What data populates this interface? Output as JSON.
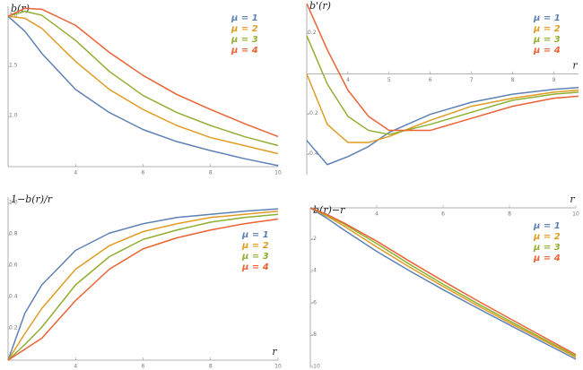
{
  "chart_data": [
    {
      "type": "line",
      "ylabel": "b(r)",
      "xlim": [
        2,
        10
      ],
      "ylim": [
        0.5,
        2.1
      ],
      "xticks": [
        4,
        6,
        8,
        10
      ],
      "yticks": [
        {
          "value": 2,
          "label": "2.0"
        },
        1.5,
        {
          "value": 1,
          "label": "1.0"
        }
      ],
      "legend": "upper right",
      "x": [
        2,
        2.5,
        3,
        4,
        5,
        6,
        7,
        8,
        9,
        10
      ],
      "series": [
        {
          "name": "μ = 1",
          "color": "#5e81b5",
          "values": [
            2.0,
            1.85,
            1.63,
            1.27,
            1.04,
            0.87,
            0.75,
            0.66,
            0.58,
            0.51
          ]
        },
        {
          "name": "μ = 2",
          "color": "#e19c24",
          "values": [
            2.0,
            1.98,
            1.88,
            1.55,
            1.27,
            1.07,
            0.91,
            0.79,
            0.71,
            0.63
          ]
        },
        {
          "name": "μ = 3",
          "color": "#8fb032",
          "values": [
            2.0,
            2.05,
            2.01,
            1.76,
            1.45,
            1.21,
            1.04,
            0.91,
            0.8,
            0.71
          ]
        },
        {
          "name": "μ = 4",
          "color": "#eb6235",
          "values": [
            2.0,
            2.08,
            2.07,
            1.91,
            1.64,
            1.41,
            1.22,
            1.07,
            0.93,
            0.8
          ]
        }
      ]
    },
    {
      "type": "line",
      "ylabel": "b'(r)",
      "xlabel": "r",
      "xlim": [
        3,
        9.6
      ],
      "ylim": [
        -0.5,
        0.35
      ],
      "xticks": [
        4,
        5,
        6,
        7,
        8,
        9
      ],
      "yticks": [
        -0.4,
        -0.2,
        0.2
      ],
      "legend": "upper right",
      "x": [
        3,
        3.5,
        4,
        4.5,
        5,
        6,
        7,
        8,
        9,
        9.6
      ],
      "series": [
        {
          "name": "μ = 1",
          "color": "#5e81b5",
          "values": [
            -0.33,
            -0.45,
            -0.41,
            -0.36,
            -0.29,
            -0.2,
            -0.14,
            -0.1,
            -0.076,
            -0.067
          ]
        },
        {
          "name": "μ = 2",
          "color": "#e19c24",
          "values": [
            0.0,
            -0.25,
            -0.34,
            -0.34,
            -0.31,
            -0.23,
            -0.16,
            -0.12,
            -0.09,
            -0.08
          ]
        },
        {
          "name": "μ = 3",
          "color": "#8fb032",
          "values": [
            0.19,
            -0.05,
            -0.21,
            -0.28,
            -0.3,
            -0.25,
            -0.19,
            -0.13,
            -0.1,
            -0.09
          ]
        },
        {
          "name": "μ = 4",
          "color": "#eb6235",
          "values": [
            0.35,
            0.12,
            -0.08,
            -0.21,
            -0.28,
            -0.28,
            -0.22,
            -0.16,
            -0.12,
            -0.11
          ]
        }
      ]
    },
    {
      "type": "line",
      "ylabel": "1−b(r)/r",
      "xlabel": "r",
      "xlim": [
        2,
        10
      ],
      "ylim": [
        0,
        1.04
      ],
      "xticks": [
        4,
        6,
        8,
        10
      ],
      "yticks": [
        0.2,
        0.4,
        0.6,
        0.8,
        {
          "value": 1,
          "label": "1.0"
        }
      ],
      "legend": "center right",
      "x": [
        2,
        2.5,
        3,
        4,
        5,
        6,
        7,
        8,
        9,
        10
      ],
      "series": [
        {
          "name": "μ = 1",
          "color": "#5e81b5",
          "values": [
            0,
            0.3,
            0.48,
            0.7,
            0.81,
            0.87,
            0.91,
            0.93,
            0.95,
            0.965
          ]
        },
        {
          "name": "μ = 2",
          "color": "#e19c24",
          "values": [
            0,
            0.17,
            0.33,
            0.58,
            0.73,
            0.82,
            0.87,
            0.91,
            0.93,
            0.95
          ]
        },
        {
          "name": "μ = 3",
          "color": "#8fb032",
          "values": [
            0,
            0.1,
            0.21,
            0.48,
            0.66,
            0.77,
            0.83,
            0.88,
            0.91,
            0.93
          ]
        },
        {
          "name": "μ = 4",
          "color": "#eb6235",
          "values": [
            0,
            0.07,
            0.14,
            0.38,
            0.58,
            0.71,
            0.78,
            0.83,
            0.87,
            0.9
          ]
        }
      ]
    },
    {
      "type": "line",
      "ylabel": "b(r)−r",
      "xlabel": "r",
      "xlim": [
        2,
        10
      ],
      "ylim": [
        -10,
        0
      ],
      "xticks": [
        4,
        6,
        8,
        10
      ],
      "yticks": [
        -2,
        -4,
        -6,
        -8,
        -10
      ],
      "legend": "upper right",
      "x": [
        2,
        2.5,
        3,
        4,
        5,
        6,
        7,
        8,
        9,
        10
      ],
      "series": [
        {
          "name": "μ = 1",
          "color": "#5e81b5",
          "values": [
            0,
            -0.65,
            -1.37,
            -2.73,
            -3.96,
            -5.13,
            -6.25,
            -7.34,
            -8.42,
            -9.49
          ]
        },
        {
          "name": "μ = 2",
          "color": "#e19c24",
          "values": [
            0,
            -0.52,
            -1.12,
            -2.45,
            -3.73,
            -4.93,
            -6.09,
            -7.21,
            -8.29,
            -9.37
          ]
        },
        {
          "name": "μ = 3",
          "color": "#8fb032",
          "values": [
            0,
            -0.45,
            -0.99,
            -2.24,
            -3.55,
            -4.79,
            -5.96,
            -7.09,
            -8.2,
            -9.29
          ]
        },
        {
          "name": "μ = 4",
          "color": "#eb6235",
          "values": [
            0,
            -0.42,
            -0.93,
            -2.09,
            -3.36,
            -4.59,
            -5.78,
            -6.93,
            -8.07,
            -9.2
          ]
        }
      ]
    }
  ]
}
